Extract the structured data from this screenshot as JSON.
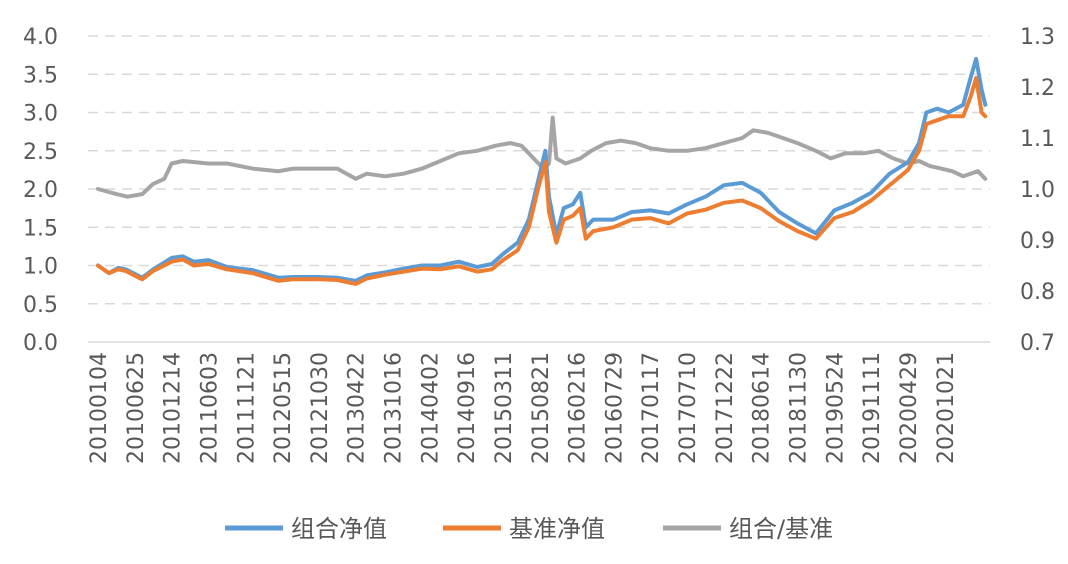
{
  "chart_data": {
    "type": "line",
    "title": "",
    "xlabel": "",
    "ylabel": "",
    "grid": true,
    "legend_position": "bottom",
    "y_left": {
      "ylim": [
        0.0,
        4.0
      ],
      "ticks": [
        "0.0",
        "0.5",
        "1.0",
        "1.5",
        "2.0",
        "2.5",
        "3.0",
        "3.5",
        "4.0"
      ]
    },
    "y_right": {
      "ylim": [
        0.7,
        1.3
      ],
      "ticks": [
        "0.7",
        "0.8",
        "0.9",
        "1.0",
        "1.1",
        "1.2",
        "1.3"
      ]
    },
    "x_ticks": [
      "20100104",
      "20100625",
      "20101214",
      "20110603",
      "20111121",
      "20120515",
      "20121030",
      "20130422",
      "20131016",
      "20140402",
      "20140916",
      "20150311",
      "20150821",
      "20160216",
      "20160729",
      "20170117",
      "20170710",
      "20171222",
      "20180614",
      "20181130",
      "20190524",
      "20191111",
      "20200429",
      "20201021"
    ],
    "series": [
      {
        "name": "组合净值",
        "axis": "left",
        "color": "#5B9BD5",
        "points": [
          [
            0,
            1.0
          ],
          [
            0.3,
            0.9
          ],
          [
            0.55,
            0.97
          ],
          [
            0.75,
            0.95
          ],
          [
            1.2,
            0.84
          ],
          [
            1.5,
            0.95
          ],
          [
            2.0,
            1.1
          ],
          [
            2.3,
            1.12
          ],
          [
            2.6,
            1.05
          ],
          [
            3.0,
            1.07
          ],
          [
            3.5,
            0.98
          ],
          [
            4.2,
            0.94
          ],
          [
            4.9,
            0.84
          ],
          [
            5.3,
            0.85
          ],
          [
            6.0,
            0.85
          ],
          [
            6.5,
            0.84
          ],
          [
            7.0,
            0.8
          ],
          [
            7.3,
            0.87
          ],
          [
            7.8,
            0.91
          ],
          [
            8.3,
            0.96
          ],
          [
            8.8,
            1.0
          ],
          [
            9.3,
            1.0
          ],
          [
            9.8,
            1.05
          ],
          [
            10.3,
            0.98
          ],
          [
            10.7,
            1.02
          ],
          [
            11.0,
            1.15
          ],
          [
            11.4,
            1.3
          ],
          [
            11.7,
            1.6
          ],
          [
            11.95,
            2.1
          ],
          [
            12.15,
            2.5
          ],
          [
            12.25,
            1.9
          ],
          [
            12.45,
            1.4
          ],
          [
            12.65,
            1.75
          ],
          [
            12.9,
            1.8
          ],
          [
            13.1,
            1.95
          ],
          [
            13.25,
            1.5
          ],
          [
            13.45,
            1.6
          ],
          [
            14.0,
            1.6
          ],
          [
            14.5,
            1.7
          ],
          [
            15.0,
            1.72
          ],
          [
            15.5,
            1.68
          ],
          [
            16.0,
            1.8
          ],
          [
            16.5,
            1.9
          ],
          [
            17.0,
            2.05
          ],
          [
            17.5,
            2.08
          ],
          [
            18.0,
            1.95
          ],
          [
            18.5,
            1.7
          ],
          [
            19.0,
            1.55
          ],
          [
            19.5,
            1.42
          ],
          [
            20.0,
            1.72
          ],
          [
            20.5,
            1.82
          ],
          [
            21.0,
            1.95
          ],
          [
            21.5,
            2.2
          ],
          [
            22.0,
            2.35
          ],
          [
            22.3,
            2.6
          ],
          [
            22.5,
            3.0
          ],
          [
            22.8,
            3.05
          ],
          [
            23.1,
            3.0
          ],
          [
            23.5,
            3.1
          ],
          [
            23.7,
            3.45
          ],
          [
            23.85,
            3.7
          ],
          [
            24.0,
            3.3
          ],
          [
            24.1,
            3.1
          ]
        ]
      },
      {
        "name": "基准净值",
        "axis": "left",
        "color": "#ED7D31",
        "points": [
          [
            0,
            1.0
          ],
          [
            0.3,
            0.9
          ],
          [
            0.55,
            0.95
          ],
          [
            0.75,
            0.93
          ],
          [
            1.2,
            0.82
          ],
          [
            1.5,
            0.93
          ],
          [
            2.0,
            1.05
          ],
          [
            2.3,
            1.08
          ],
          [
            2.6,
            1.0
          ],
          [
            3.0,
            1.02
          ],
          [
            3.5,
            0.95
          ],
          [
            4.2,
            0.9
          ],
          [
            4.9,
            0.8
          ],
          [
            5.3,
            0.82
          ],
          [
            6.0,
            0.82
          ],
          [
            6.5,
            0.81
          ],
          [
            7.0,
            0.76
          ],
          [
            7.3,
            0.83
          ],
          [
            7.8,
            0.88
          ],
          [
            8.3,
            0.92
          ],
          [
            8.8,
            0.96
          ],
          [
            9.3,
            0.95
          ],
          [
            9.8,
            0.99
          ],
          [
            10.3,
            0.92
          ],
          [
            10.7,
            0.95
          ],
          [
            11.0,
            1.07
          ],
          [
            11.4,
            1.2
          ],
          [
            11.7,
            1.5
          ],
          [
            11.95,
            2.0
          ],
          [
            12.15,
            2.35
          ],
          [
            12.25,
            1.7
          ],
          [
            12.45,
            1.3
          ],
          [
            12.65,
            1.6
          ],
          [
            12.9,
            1.65
          ],
          [
            13.1,
            1.75
          ],
          [
            13.25,
            1.35
          ],
          [
            13.45,
            1.45
          ],
          [
            14.0,
            1.5
          ],
          [
            14.5,
            1.6
          ],
          [
            15.0,
            1.62
          ],
          [
            15.5,
            1.55
          ],
          [
            16.0,
            1.68
          ],
          [
            16.5,
            1.73
          ],
          [
            17.0,
            1.82
          ],
          [
            17.5,
            1.85
          ],
          [
            18.0,
            1.75
          ],
          [
            18.5,
            1.58
          ],
          [
            19.0,
            1.45
          ],
          [
            19.5,
            1.35
          ],
          [
            20.0,
            1.62
          ],
          [
            20.5,
            1.7
          ],
          [
            21.0,
            1.85
          ],
          [
            21.5,
            2.05
          ],
          [
            22.0,
            2.25
          ],
          [
            22.3,
            2.5
          ],
          [
            22.5,
            2.85
          ],
          [
            22.8,
            2.9
          ],
          [
            23.1,
            2.95
          ],
          [
            23.5,
            2.95
          ],
          [
            23.7,
            3.2
          ],
          [
            23.85,
            3.45
          ],
          [
            24.0,
            3.0
          ],
          [
            24.1,
            2.95
          ]
        ]
      },
      {
        "name": "组合/基准",
        "axis": "right",
        "color": "#A5A5A5",
        "points": [
          [
            0,
            1.0
          ],
          [
            0.5,
            0.99
          ],
          [
            0.8,
            0.985
          ],
          [
            1.2,
            0.99
          ],
          [
            1.5,
            1.01
          ],
          [
            1.8,
            1.02
          ],
          [
            2.0,
            1.05
          ],
          [
            2.3,
            1.055
          ],
          [
            3.0,
            1.05
          ],
          [
            3.5,
            1.05
          ],
          [
            4.2,
            1.04
          ],
          [
            4.9,
            1.035
          ],
          [
            5.3,
            1.04
          ],
          [
            6.0,
            1.04
          ],
          [
            6.5,
            1.04
          ],
          [
            7.0,
            1.02
          ],
          [
            7.3,
            1.03
          ],
          [
            7.8,
            1.025
          ],
          [
            8.3,
            1.03
          ],
          [
            8.8,
            1.04
          ],
          [
            9.3,
            1.055
          ],
          [
            9.8,
            1.07
          ],
          [
            10.3,
            1.075
          ],
          [
            10.8,
            1.085
          ],
          [
            11.2,
            1.09
          ],
          [
            11.5,
            1.085
          ],
          [
            11.7,
            1.07
          ],
          [
            11.9,
            1.055
          ],
          [
            12.1,
            1.04
          ],
          [
            12.25,
            1.05
          ],
          [
            12.35,
            1.14
          ],
          [
            12.45,
            1.06
          ],
          [
            12.7,
            1.05
          ],
          [
            13.1,
            1.06
          ],
          [
            13.4,
            1.075
          ],
          [
            13.8,
            1.09
          ],
          [
            14.2,
            1.095
          ],
          [
            14.6,
            1.09
          ],
          [
            15.0,
            1.08
          ],
          [
            15.5,
            1.075
          ],
          [
            16.0,
            1.075
          ],
          [
            16.5,
            1.08
          ],
          [
            17.0,
            1.09
          ],
          [
            17.5,
            1.1
          ],
          [
            17.8,
            1.115
          ],
          [
            18.2,
            1.11
          ],
          [
            18.6,
            1.1
          ],
          [
            19.0,
            1.09
          ],
          [
            19.5,
            1.075
          ],
          [
            19.9,
            1.06
          ],
          [
            20.3,
            1.07
          ],
          [
            20.8,
            1.07
          ],
          [
            21.2,
            1.075
          ],
          [
            21.6,
            1.06
          ],
          [
            22.0,
            1.05
          ],
          [
            22.3,
            1.055
          ],
          [
            22.6,
            1.045
          ],
          [
            22.9,
            1.04
          ],
          [
            23.2,
            1.035
          ],
          [
            23.5,
            1.025
          ],
          [
            23.7,
            1.03
          ],
          [
            23.9,
            1.035
          ],
          [
            24.1,
            1.02
          ]
        ]
      }
    ]
  }
}
